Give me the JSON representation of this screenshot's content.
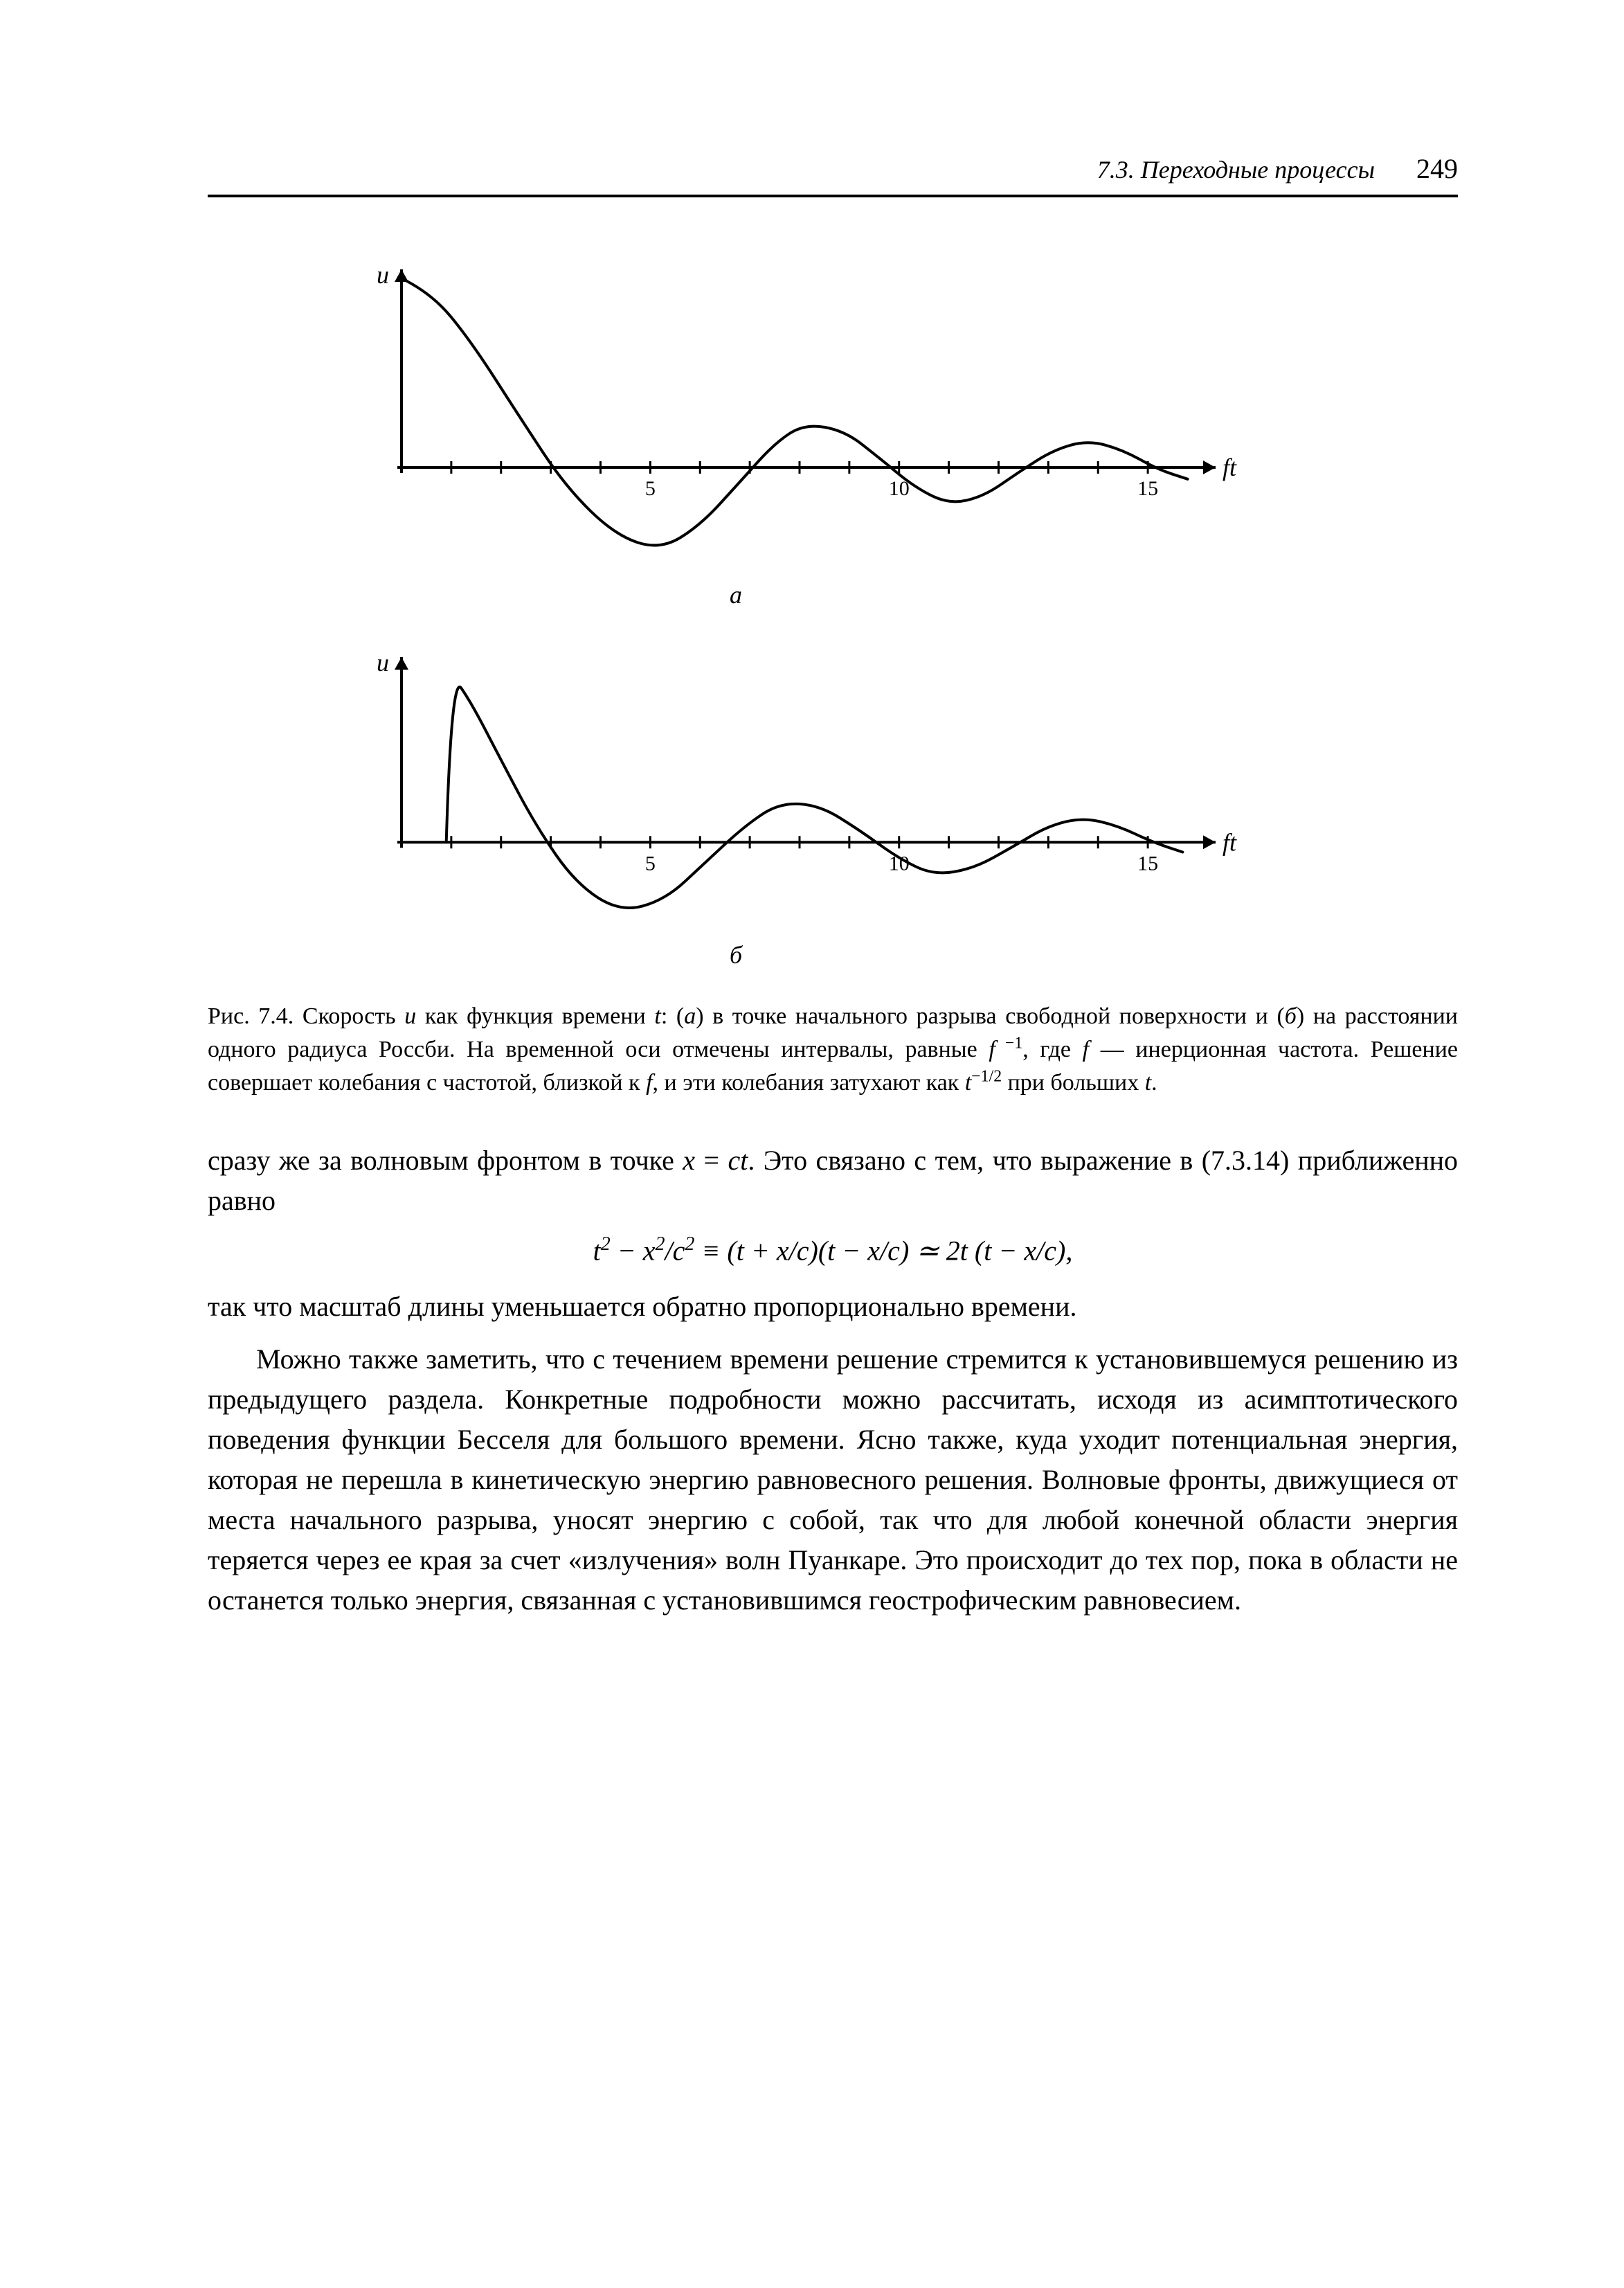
{
  "page": {
    "section_header": "7.3. Переходные процессы",
    "page_number": "249"
  },
  "figure_a": {
    "type": "line",
    "y_axis_label": "u",
    "x_axis_label": "ft",
    "panel_label": "а",
    "xlim": [
      0,
      16
    ],
    "ylim": [
      -1.0,
      2.0
    ],
    "x_ticks_labeled": {
      "5": "5",
      "10": "10",
      "15": "15"
    },
    "x_minor_tick_step": 1,
    "curve_points": [
      [
        0.0,
        1.95
      ],
      [
        0.6,
        1.8
      ],
      [
        1.4,
        1.3
      ],
      [
        2.4,
        0.5
      ],
      [
        3.3,
        -0.2
      ],
      [
        4.3,
        -0.7
      ],
      [
        5.2,
        -0.85
      ],
      [
        6.0,
        -0.6
      ],
      [
        6.8,
        -0.15
      ],
      [
        7.5,
        0.25
      ],
      [
        8.1,
        0.45
      ],
      [
        8.9,
        0.38
      ],
      [
        9.6,
        0.1
      ],
      [
        10.3,
        -0.2
      ],
      [
        11.0,
        -0.38
      ],
      [
        11.7,
        -0.3
      ],
      [
        12.4,
        -0.05
      ],
      [
        13.1,
        0.18
      ],
      [
        13.8,
        0.28
      ],
      [
        14.5,
        0.18
      ],
      [
        15.2,
        -0.02
      ],
      [
        15.8,
        -0.12
      ]
    ],
    "stroke_color": "#000000",
    "stroke_width": 4,
    "axis_color": "#000000",
    "axis_width": 4,
    "label_fontsize": 36,
    "tick_label_fontsize": 30,
    "background": "#ffffff"
  },
  "figure_b": {
    "type": "line",
    "y_axis_label": "u",
    "x_axis_label": "ft",
    "panel_label": "б",
    "xlim": [
      0,
      16
    ],
    "ylim": [
      -1.0,
      2.2
    ],
    "x_ticks_labeled": {
      "5": "5",
      "10": "10",
      "15": "15"
    },
    "x_minor_tick_step": 1,
    "curve_points": [
      [
        0.9,
        0.0
      ],
      [
        1.0,
        2.05
      ],
      [
        1.4,
        1.7
      ],
      [
        2.0,
        1.0
      ],
      [
        2.7,
        0.2
      ],
      [
        3.5,
        -0.5
      ],
      [
        4.4,
        -0.85
      ],
      [
        5.3,
        -0.7
      ],
      [
        6.1,
        -0.25
      ],
      [
        6.9,
        0.2
      ],
      [
        7.6,
        0.48
      ],
      [
        8.4,
        0.45
      ],
      [
        9.2,
        0.15
      ],
      [
        10.0,
        -0.2
      ],
      [
        10.7,
        -0.4
      ],
      [
        11.5,
        -0.32
      ],
      [
        12.3,
        -0.05
      ],
      [
        13.0,
        0.2
      ],
      [
        13.7,
        0.3
      ],
      [
        14.4,
        0.2
      ],
      [
        15.1,
        0.0
      ],
      [
        15.7,
        -0.12
      ]
    ],
    "stroke_color": "#000000",
    "stroke_width": 4,
    "axis_color": "#000000",
    "axis_width": 4,
    "label_fontsize": 36,
    "tick_label_fontsize": 30,
    "background": "#ffffff"
  },
  "caption": {
    "lead": "Рис. 7.4.",
    "body_html": "Скорость <i>u</i> как функция времени <i>t</i>: (<i>а</i>) в точке начального разрыва свободной поверхности и (<i>б</i>) на расстоянии одного радиуса Россби. На временной оси отмечены интервалы, равные <i>f</i><sup> −1</sup>, где <i>f</i> — инерционная частота. Решение совершает колебания с частотой, близкой к <i>f</i>, и эти колебания затухают как <i>t</i><sup>−1/2</sup> при больших <i>t</i>."
  },
  "body": {
    "p1_html": "сразу же за волновым фронтом в точке <i>x</i> = <i>ct</i>. Это связано с тем, что выражение в (7.3.14) приближенно равно",
    "equation_html": "<i>t</i><sup>2</sup> − <i>x</i><sup>2</sup>/<i>c</i><sup>2</sup> ≡ (<i>t</i> + <i>x</i>/<i>c</i>)(<i>t</i> − <i>x</i>/<i>c</i>) ≃ 2<i>t</i> (<i>t</i> − <i>x</i>/<i>c</i>),",
    "p2_html": "так что масштаб длины уменьшается обратно пропорционально времени.",
    "p3_html": "Можно также заметить, что с течением времени решение стремится к установившемуся решению из предыдущего раздела. Конкретные подробности можно рассчитать, исходя из асимптотического поведения функции Бесселя для большого времени. Ясно также, куда уходит потенциальная энергия, которая не перешла в кинетическую энергию равновесного решения. Волновые фронты, движущиеся от места начального разрыва, уносят энергию с собой, так что для любой конечной области энергия теряется через ее края за счет «излучения» волн Пуанкаре. Это происходит до тех пор, пока в области не останется только энергия, связанная с установившимся геострофическим равновесием."
  }
}
